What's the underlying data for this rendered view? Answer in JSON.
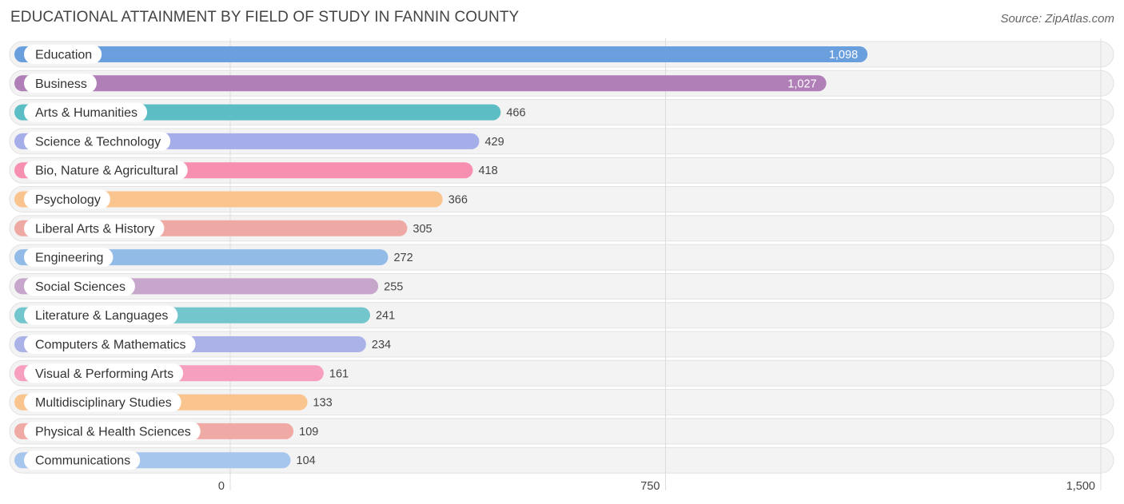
{
  "title": "EDUCATIONAL ATTAINMENT BY FIELD OF STUDY IN FANNIN COUNTY",
  "source": "Source: ZipAtlas.com",
  "chart_data": {
    "type": "bar",
    "orientation": "horizontal",
    "title": "EDUCATIONAL ATTAINMENT BY FIELD OF STUDY IN FANNIN COUNTY",
    "xlabel": "",
    "ylabel": "",
    "xlim": [
      0,
      1500
    ],
    "xticks": [
      0,
      750,
      1500
    ],
    "xtick_labels": [
      "0",
      "750",
      "1,500"
    ],
    "grid": true,
    "categories": [
      "Education",
      "Business",
      "Arts & Humanities",
      "Science & Technology",
      "Bio, Nature & Agricultural",
      "Psychology",
      "Liberal Arts & History",
      "Engineering",
      "Social Sciences",
      "Literature & Languages",
      "Computers & Mathematics",
      "Visual & Performing Arts",
      "Multidisciplinary Studies",
      "Physical & Health Sciences",
      "Communications"
    ],
    "values": [
      1098,
      1027,
      466,
      429,
      418,
      366,
      305,
      272,
      255,
      241,
      234,
      161,
      133,
      109,
      104
    ],
    "value_labels": [
      "1,098",
      "1,027",
      "466",
      "429",
      "418",
      "366",
      "305",
      "272",
      "255",
      "241",
      "234",
      "161",
      "133",
      "109",
      "104"
    ],
    "colors": [
      "#6a9fdd",
      "#b07fb8",
      "#5cbdc5",
      "#a5aee9",
      "#f78fb0",
      "#f9c48e",
      "#eea9a5",
      "#93bbe8",
      "#c7a6cc",
      "#72c6cc",
      "#abb2e8",
      "#f79fbf",
      "#f9c48e",
      "#efaaa6",
      "#a7c6ee"
    ]
  }
}
